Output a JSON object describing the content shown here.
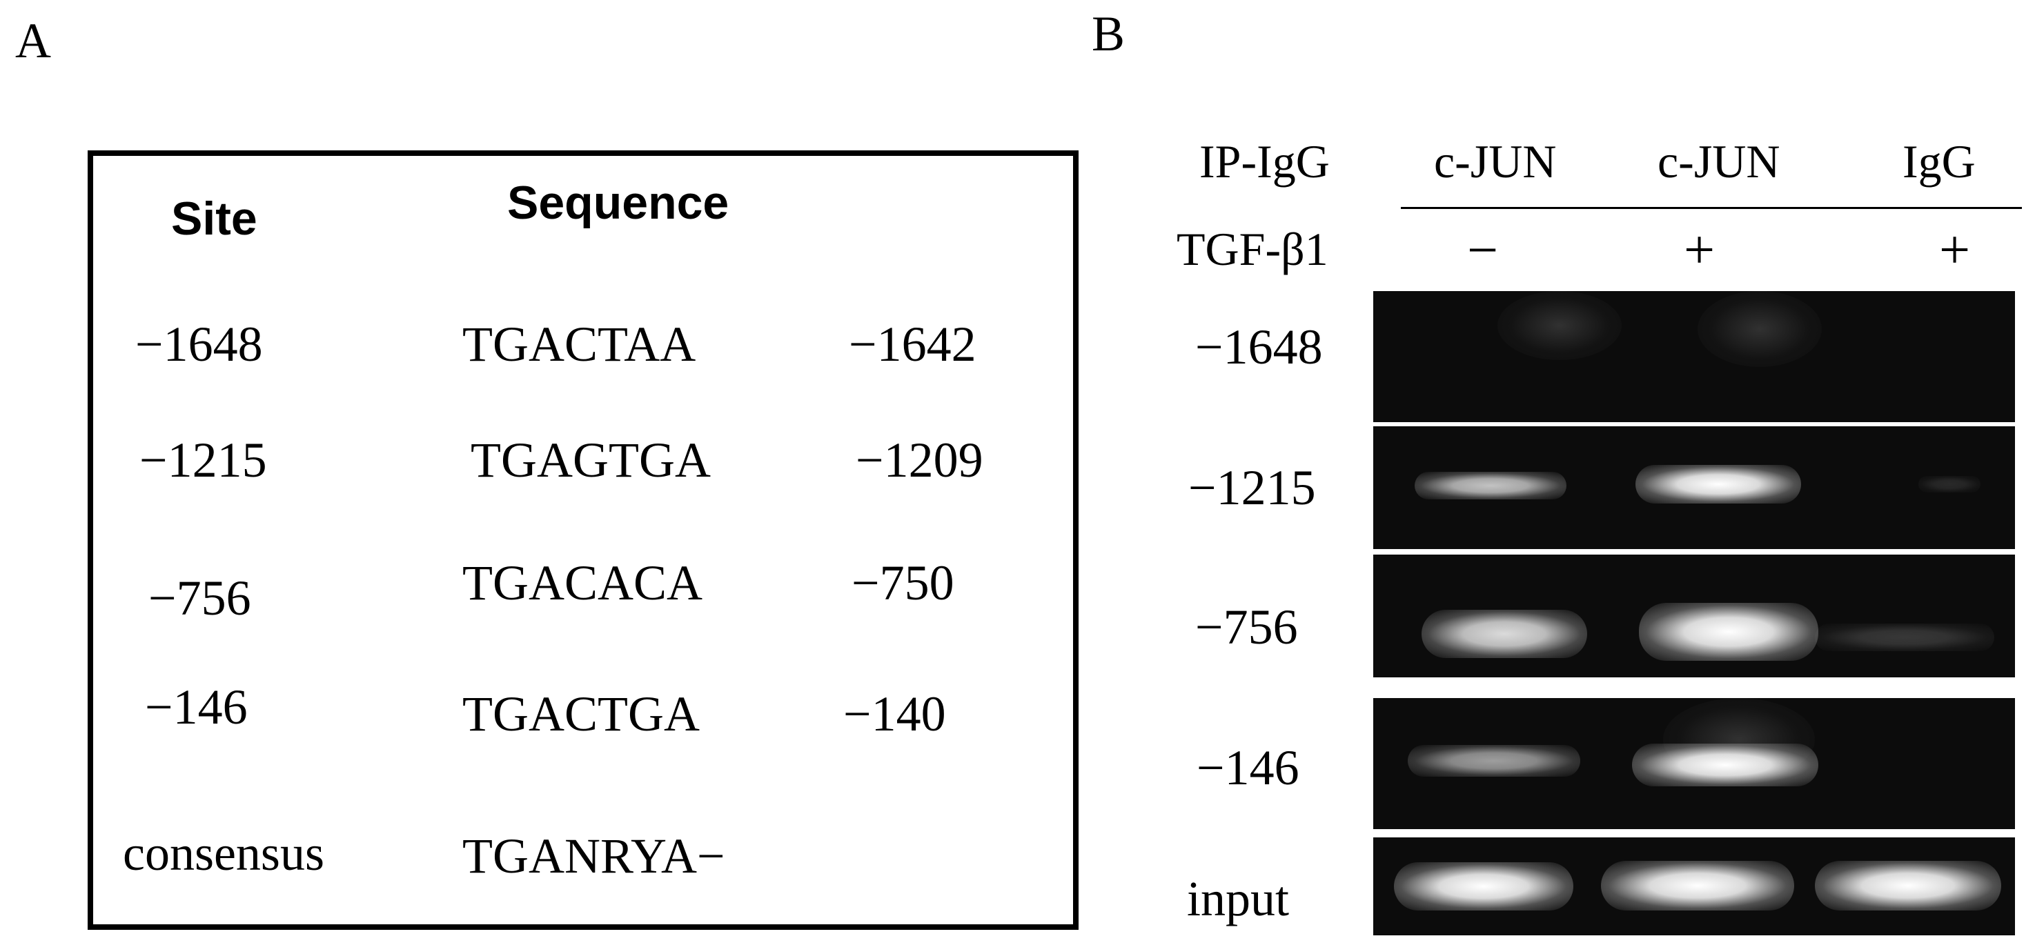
{
  "panel_a": {
    "label": "A",
    "headers": {
      "site": "Site",
      "sequence": "Sequence"
    },
    "rows": [
      {
        "site": "−1648",
        "sequence": "TGACTAA",
        "end": "−1642"
      },
      {
        "site": "−1215",
        "sequence": "TGAGTGA",
        "end": "−1209"
      },
      {
        "site": "−756",
        "sequence": "TGACACA",
        "end": "−750"
      },
      {
        "site": "−146",
        "sequence": "TGACTGA",
        "end": "−140"
      },
      {
        "site": "consensus",
        "sequence": "TGANRYA−",
        "end": ""
      }
    ]
  },
  "panel_b": {
    "label": "B",
    "ip_row_label": "IP-IgG",
    "ip_lanes": [
      "c-JUN",
      "c-JUN",
      "IgG"
    ],
    "tgf_row_label": "TGF-β1",
    "tgf_lanes": [
      "−",
      "+",
      "+"
    ],
    "gel_rows": [
      {
        "label": "−1648",
        "intensities": [
          0.05,
          0.08,
          0.0
        ]
      },
      {
        "label": "−1215",
        "intensities": [
          0.55,
          0.95,
          0.05
        ]
      },
      {
        "label": "−756",
        "intensities": [
          0.75,
          1.0,
          0.15
        ]
      },
      {
        "label": "−146",
        "intensities": [
          0.5,
          1.0,
          0.0
        ]
      },
      {
        "label": "input",
        "intensities": [
          1.0,
          1.0,
          1.0
        ]
      }
    ]
  }
}
